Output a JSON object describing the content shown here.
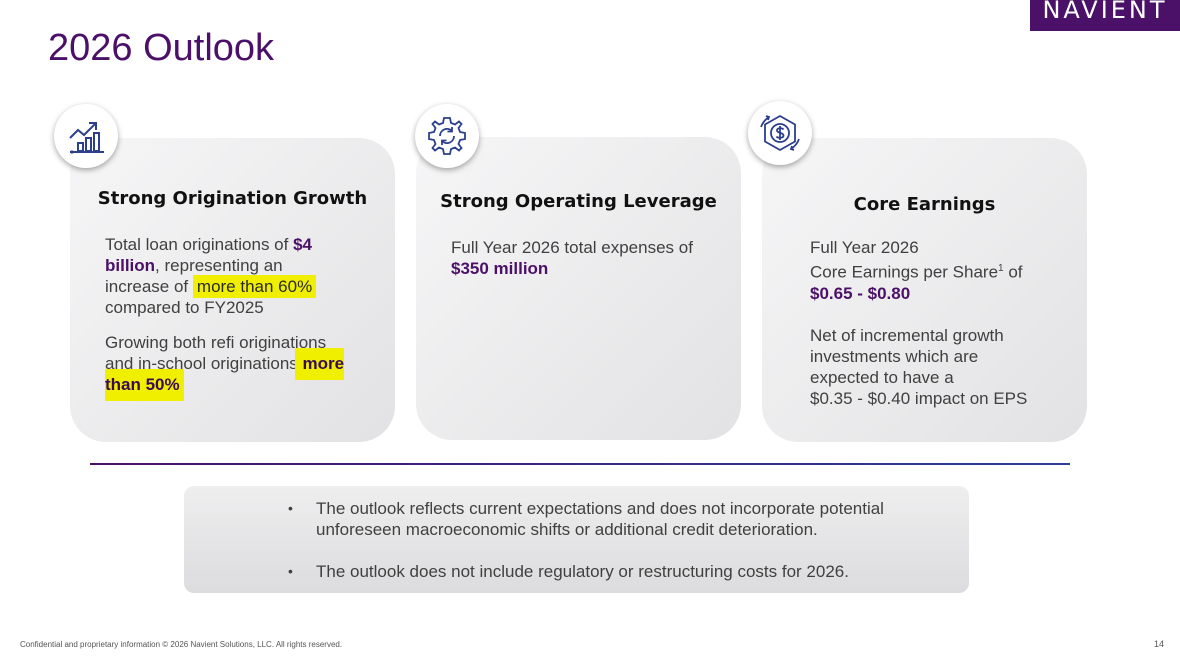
{
  "logo": {
    "text": "NAVIENT"
  },
  "title": "2026 Outlook",
  "cards": [
    {
      "title": "Strong Origination Growth",
      "icon": "growth-chart-icon",
      "p1_pre": "Total loan originations of",
      "p1_amount": "$4 billion",
      "p1_mid": ", representing an increase of",
      "p1_highlight": "more than 60%",
      "p1_post": "compared to FY2025",
      "p2_text": "Growing both refi originations and in-school originations",
      "p2_highlight": "more than 50%"
    },
    {
      "title": "Strong Operating Leverage",
      "icon": "gear-cycle-icon",
      "text": "Full Year 2026 total expenses of",
      "amount": "$350 million"
    },
    {
      "title": "Core Earnings",
      "icon": "dollar-cycle-icon",
      "line1": "Full Year 2026",
      "line2_pre": "Core Earnings per Share",
      "line2_sup": "1",
      "line2_post": " of",
      "range": "$0.65 - $0.80",
      "net_text": "Net of incremental growth investments which are expected to have a",
      "impact": "$0.35 - $0.40 impact on EPS"
    }
  ],
  "notes": [
    "The outlook reflects current expectations and does not incorporate potential unforeseen macroeconomic shifts or additional credit deterioration.",
    "The outlook does not include regulatory or restructuring costs for 2026."
  ],
  "bullet_char": "•",
  "footer": "Confidential and proprietary information  © 2026 Navient Solutions, LLC. All rights reserved.",
  "page_number": "14",
  "colors": {
    "brand_purple": "#4b1068",
    "highlight": "#f0ef00",
    "icon_blue": "#2b3f8c"
  }
}
